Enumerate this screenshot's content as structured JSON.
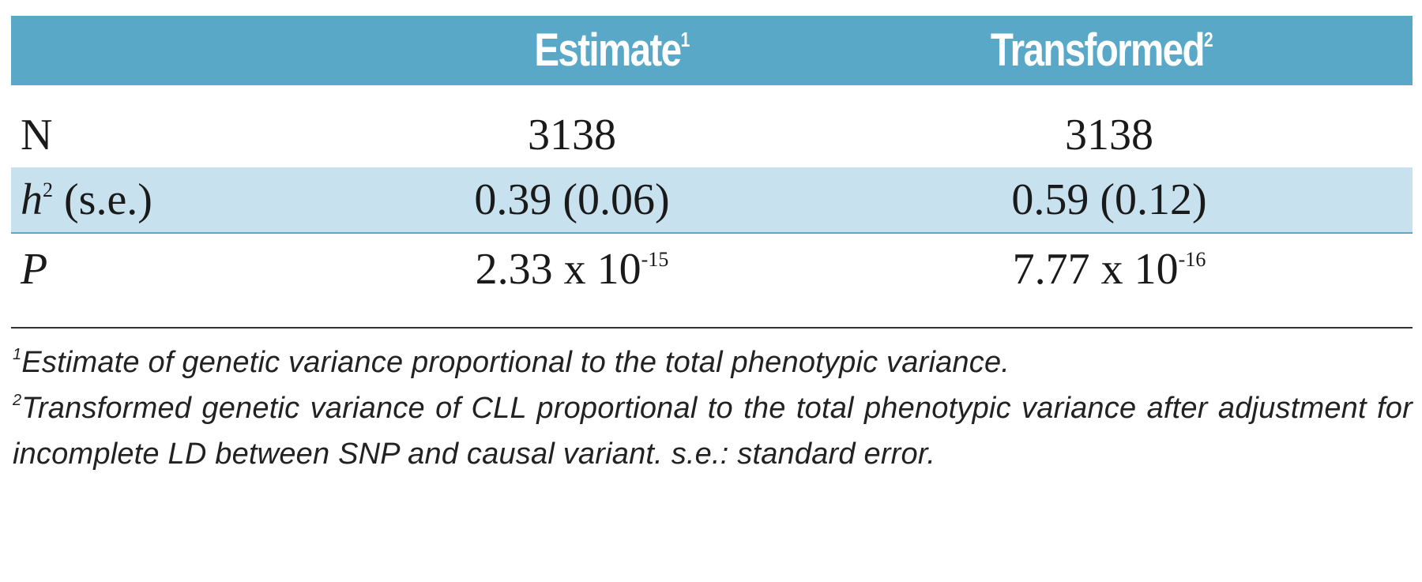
{
  "header": {
    "col_estimate": "Estimate",
    "col_estimate_note": "1",
    "col_transformed": "Transformed",
    "col_transformed_note": "2"
  },
  "rows": [
    {
      "label": "N",
      "estimate": "3138",
      "transformed": "3138"
    },
    {
      "label_var": "h",
      "label_sup": "2",
      "label_rest": " (s.e.)",
      "estimate": "0.39 (0.06)",
      "transformed": "0.59 (0.12)"
    },
    {
      "label": "P",
      "estimate_base": "2.33 x 10",
      "estimate_exp": "-15",
      "transformed_base": "7.77 x 10",
      "transformed_exp": "-16"
    }
  ],
  "footnotes": {
    "note1_marker": "1",
    "note1_text": "Estimate of genetic variance proportional to the total phenotypic variance.",
    "note2_marker": "2",
    "note2_text": "Transformed genetic variance of CLL proportional to the total phenotypic variance after adjustment for incomplete LD between SNP and causal variant. s.e.: standard error."
  },
  "colors": {
    "header_bg": "#5aa8c8",
    "highlight_row_bg": "#c8e1ee",
    "header_text": "#ffffff"
  }
}
